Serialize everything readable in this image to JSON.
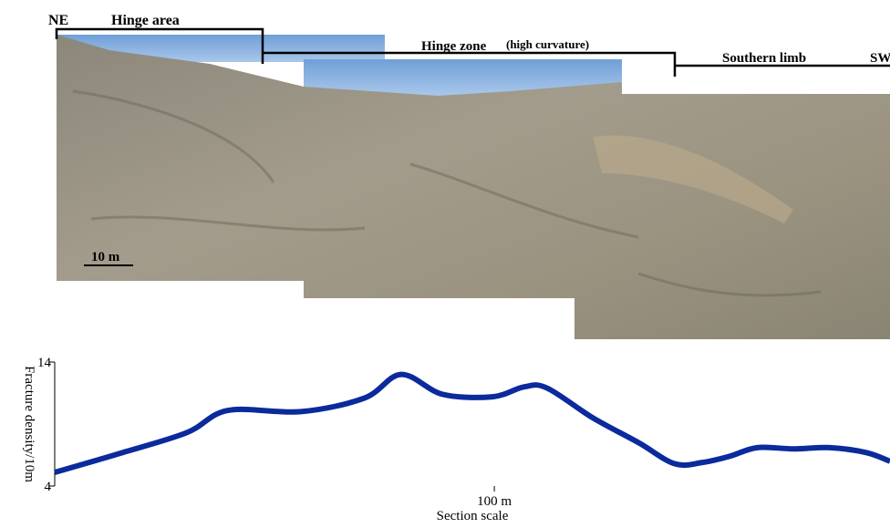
{
  "chart_data": {
    "type": "line",
    "annotations": [
      "NE",
      "Hinge area",
      "Hinge zone",
      "(high curvature)",
      "Southern limb",
      "SW",
      "10 m"
    ],
    "x_label": "Section scale",
    "y_label": "Fracture density/10m",
    "x": [
      0,
      14.5,
      30,
      39.4,
      56,
      70.5,
      78.8,
      88.2,
      99.6,
      106.8,
      112,
      122.4,
      132.8,
      141,
      147.3,
      153.5,
      159.8,
      168,
      176.3,
      184.6,
      190
    ],
    "series": [
      {
        "color": "#0b2a9c",
        "values": [
          5.1,
          6.6,
          8.3,
          10.1,
          10.0,
          11.1,
          13.0,
          11.4,
          11.2,
          12.0,
          11.9,
          9.5,
          7.5,
          5.8,
          5.9,
          6.4,
          7.1,
          7.0,
          7.1,
          6.7,
          6.0
        ]
      }
    ],
    "xlim": [
      0,
      190
    ],
    "xticks": [
      {
        "value": 100,
        "label": "100 m"
      }
    ],
    "ylim": [
      4,
      14
    ],
    "yticks": [
      4,
      14
    ]
  }
}
